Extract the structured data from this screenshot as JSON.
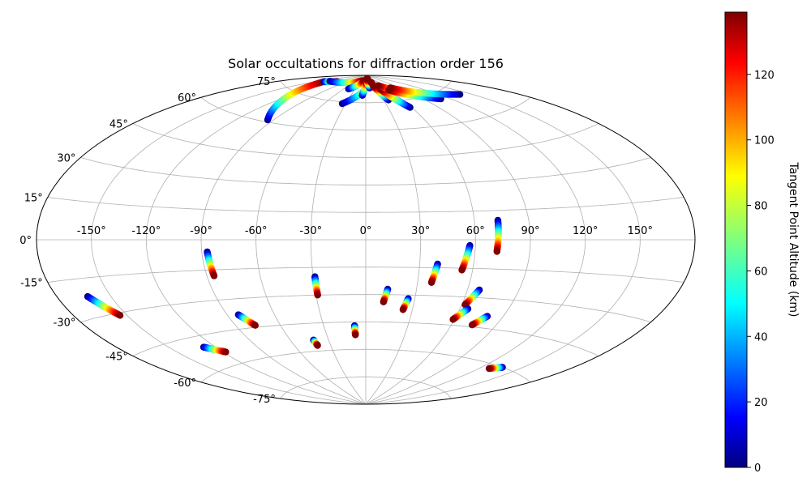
{
  "chart_data": {
    "type": "scatter",
    "projection": "aitoff",
    "title": "Solar occultations for diffraction order 156",
    "grid": true,
    "longitude_ticks": [
      -150,
      -120,
      -90,
      -60,
      -30,
      0,
      30,
      60,
      90,
      120,
      150
    ],
    "longitude_tick_labels": [
      "-150°",
      "-120°",
      "-90°",
      "-60°",
      "-30°",
      "0°",
      "30°",
      "60°",
      "90°",
      "120°",
      "150°"
    ],
    "latitude_ticks": [
      -75,
      -60,
      -45,
      -30,
      -15,
      0,
      15,
      30,
      45,
      60,
      75
    ],
    "latitude_tick_labels": [
      "-75°",
      "-60°",
      "-45°",
      "-30°",
      "-15°",
      "0°",
      "15°",
      "30°",
      "45°",
      "60°",
      "75°"
    ],
    "colorbar": {
      "label": "Tangent Point Altitude (km)",
      "range": [
        0,
        139
      ],
      "colormap": "jet",
      "ticks": [
        0,
        20,
        40,
        60,
        80,
        100,
        120
      ],
      "tick_labels": [
        "0",
        "20",
        "40",
        "60",
        "80",
        "100",
        "120"
      ],
      "placement": "right"
    },
    "tracks": [
      {
        "lon": [
          -163,
          -154
        ],
        "lat": [
          -22,
          -31
        ],
        "alt": [
          0,
          139
        ]
      },
      {
        "lon": [
          -128,
          -118
        ],
        "lat": [
          -50,
          -54
        ],
        "alt": [
          0,
          139
        ]
      },
      {
        "lon": [
          -87,
          -86
        ],
        "lat": [
          -6,
          -18
        ],
        "alt": [
          0,
          139
        ]
      },
      {
        "lon": [
          -83,
          -77
        ],
        "lat": [
          -38,
          -44
        ],
        "alt": [
          0,
          139
        ]
      },
      {
        "lon": [
          -42,
          -41
        ],
        "lat": [
          -54,
          -57
        ],
        "alt": [
          0,
          139
        ]
      },
      {
        "lon": [
          -29,
          -29
        ],
        "lat": [
          -20,
          -30
        ],
        "alt": [
          0,
          139
        ]
      },
      {
        "lon": [
          -8,
          -8
        ],
        "lat": [
          -47,
          -52
        ],
        "alt": [
          0,
          139
        ]
      },
      {
        "lon": [
          13,
          11
        ],
        "lat": [
          -27,
          -34
        ],
        "alt": [
          0,
          139
        ]
      },
      {
        "lon": [
          26,
          24
        ],
        "lat": [
          -32,
          -38
        ],
        "alt": [
          0,
          139
        ]
      },
      {
        "lon": [
          40,
          38
        ],
        "lat": [
          -13,
          -23
        ],
        "alt": [
          0,
          139
        ]
      },
      {
        "lon": [
          57,
          54
        ],
        "lat": [
          -3,
          -16
        ],
        "alt": [
          0,
          139
        ]
      },
      {
        "lon": [
          67,
          62
        ],
        "lat": [
          -26,
          -34
        ],
        "alt": [
          0,
          139
        ]
      },
      {
        "lon": [
          65,
          59
        ],
        "lat": [
          -36,
          -42
        ],
        "alt": [
          0,
          139
        ]
      },
      {
        "lon": [
          73,
          72
        ],
        "lat": [
          10,
          -6
        ],
        "alt": [
          0,
          139
        ]
      },
      {
        "lon": [
          80,
          74
        ],
        "lat": [
          -39,
          -44
        ],
        "alt": [
          0,
          139
        ]
      },
      {
        "lon": [
          136,
          128
        ],
        "lat": [
          -60,
          -62
        ],
        "alt": [
          0,
          139
        ]
      },
      {
        "lon": [
          -95,
          -140
        ],
        "lat": [
          61,
          82
        ],
        "alt": [
          0,
          139
        ]
      },
      {
        "lon": [
          -140,
          -120
        ],
        "lat": [
          82,
          84
        ],
        "alt": [
          0,
          139
        ]
      },
      {
        "lon": [
          -135,
          -25
        ],
        "lat": [
          83,
          87
        ],
        "alt": [
          0,
          139
        ]
      },
      {
        "lon": [
          -48,
          -14
        ],
        "lat": [
          82,
          87
        ],
        "alt": [
          0,
          139
        ]
      },
      {
        "lon": [
          -35,
          20
        ],
        "lat": [
          74,
          88
        ],
        "alt": [
          0,
          139
        ]
      },
      {
        "lon": [
          -7,
          0
        ],
        "lat": [
          79,
          87
        ],
        "alt": [
          0,
          139
        ]
      },
      {
        "lon": [
          12,
          8
        ],
        "lat": [
          83,
          88
        ],
        "alt": [
          0,
          139
        ]
      },
      {
        "lon": [
          35,
          28
        ],
        "lat": [
          82,
          86
        ],
        "alt": [
          0,
          139
        ]
      },
      {
        "lon": [
          38,
          27
        ],
        "lat": [
          76,
          84
        ],
        "alt": [
          0,
          139
        ]
      },
      {
        "lon": [
          58,
          40
        ],
        "lat": [
          71,
          82
        ],
        "alt": [
          0,
          139
        ]
      },
      {
        "lon": [
          101,
          45
        ],
        "lat": [
          77,
          84
        ],
        "alt": [
          0,
          139
        ]
      },
      {
        "lon": [
          110,
          58
        ],
        "lat": [
          72,
          81
        ],
        "alt": [
          0,
          139
        ]
      },
      {
        "lon": [
          140,
          70
        ],
        "lat": [
          71,
          82
        ],
        "alt": [
          0,
          139
        ]
      }
    ]
  }
}
